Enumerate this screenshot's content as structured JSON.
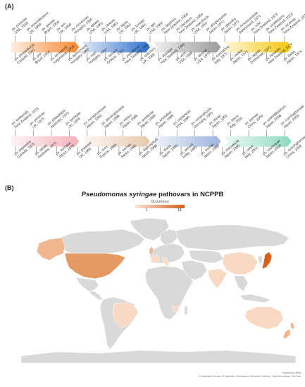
{
  "panel_a_label": "(A)",
  "panel_b_label": "(B)",
  "map_title_italic": "Pseudomonas syringae",
  "map_title_rest": " pathovars in NCPPB",
  "legend": {
    "title": "Occurrence",
    "min": "1",
    "max": "18",
    "color_low": "#fbe4d6",
    "color_high": "#d2601a"
  },
  "credit": {
    "line1": "Powered by Bing",
    "line2": "© Australian Bureau of Statistics, GeoNames, Microsoft, Navinfo, OpenStreetMap, TomTom"
  },
  "timeline": [
    {
      "segments": [
        "#f7892f",
        "#2d6fce",
        "#9b9b9b",
        "#f6c70a"
      ],
      "top": [
        [
          "pv. primulae",
          "USA, 1939"
        ],
        [
          "pv. coronafaciens",
          "UK, 1958"
        ],
        [
          "pv. garcae",
          "Brazil, 1958"
        ],
        [
          "pv. avii",
          "UK, 1959"
        ],
        [
          "pv. ciccaronei",
          "Hungary, 1960"
        ],
        [
          "pv. aptata",
          "USA, 1961"
        ],
        [
          "pv. ribicola",
          "USA, 1961"
        ],
        [
          "pv. lapsa",
          "UK, 1961"
        ],
        [
          "pv. tomato",
          "UK, 1961"
        ],
        [
          "pv. apii",
          "USA, 1964"
        ],
        [
          "pv. delphinii",
          "New Zealand, 1966"
        ],
        [
          "pv. papulans",
          "New Zealand, 1966"
        ],
        [
          "pv. maculicola",
          "USA, 1967"
        ],
        [
          "pv. atropurpurea",
          "Japan, 1971"
        ],
        [
          "pv. glycinea",
          "Japan, 1971"
        ],
        [
          "pv. broussonetiae",
          "Switzerland, 1971"
        ],
        [
          "pv. mori",
          "New Zealand, 1973"
        ],
        [
          "pv. striafaciens",
          "New Zealand, 1974"
        ],
        [
          "pv. zizaniae",
          "New Zealand, 1974"
        ]
      ],
      "bottom": [
        [
          "pv. phaseolicola",
          "Canada, 1941"
        ],
        [
          "pv. pisi",
          "Brazil, 1959"
        ],
        [
          "pv. cerasicola",
          "Yugoslavia, 1959"
        ],
        [
          "pv. lachrymans",
          "Hungary, 1960"
        ],
        [
          "pv. mori",
          "Hungary, 1961"
        ],
        [
          "pv. sesami",
          "Greece, 1961"
        ],
        [
          "pv. passiflorae",
          "New Zealand, 1961"
        ],
        [
          "pv. antirrhini",
          "UK, 1966"
        ],
        [
          "pv. dysoxyli",
          "New Zealand, 1966"
        ],
        [
          "pv. ulmi",
          "USA, 1966"
        ],
        [
          "pv. aesculi",
          "USA, 1970"
        ],
        [
          "pv. cannabina",
          "Italy, 1971"
        ],
        [
          "pv. mellea",
          "Japan, 1971"
        ],
        [
          "pv. tagetis",
          "Zimbabwe, 1972"
        ],
        [
          "pv. helianthi",
          "New Zealand, 1974"
        ],
        [
          "pv. theae",
          "Japan, 1974"
        ]
      ]
    },
    {
      "segments": [
        "#f3b2ba",
        "#e8c9ae",
        "#9bb4dc",
        "#8fd9c2"
      ],
      "top": [
        [
          "pv. berberidis",
          "New Zealand, 1975"
        ],
        [
          "pv. persicae",
          "UK, 1975"
        ],
        [
          "pv. philadelphi",
          "Australia, 1975"
        ],
        [
          "pv. syringae",
          "UK, 1976"
        ],
        [
          "pv. morsprunorum",
          "Japan, 1983"
        ],
        [
          "pv. dendropanacis",
          "Japan, 1986"
        ],
        [
          "pv. hibisci",
          "Japan, 1986"
        ],
        [
          "pv. avellanae",
          "Japan, 1989"
        ],
        [
          "pv. actinidiae",
          "Japan, 1989"
        ],
        [
          "pv. castaneae",
          "USA, 1990"
        ],
        [
          "pv. coriandricola",
          "Germany, 1991"
        ],
        [
          "pv. theae",
          "Japan, 1991"
        ],
        [
          "pv. lilacis",
          "Italy, 2001"
        ],
        [
          "pv. tremae",
          "China, 2008"
        ],
        [
          "pv. actinidifoliorum",
          "Japan, 2008"
        ],
        [
          "pv. cunninghamiae",
          "Japan, 2009"
        ]
      ],
      "bottom": [
        [
          "pv. papaveris",
          "Canada, 1975"
        ],
        [
          "pv. tabaci",
          "Australia, 1975"
        ],
        [
          "pv. syringae",
          "Japan, 1976"
        ],
        [
          "pv. phaseoli",
          "UK, 1983"
        ],
        [
          "pv. mori",
          "France, 1985"
        ],
        [
          "pv. tremae",
          "Japan, 1986"
        ],
        [
          "pv. daphniphylli",
          "Japan, 1988"
        ],
        [
          "pv. lilacis",
          "Japan, 1989"
        ],
        [
          "pv. aesculi",
          "India, 1990"
        ],
        [
          "pv. oryzae",
          "Japan, 1990"
        ],
        [
          "pv. maculicola",
          "Japan, 1990"
        ],
        [
          "pv. coryli",
          "Italy, 2001"
        ],
        [
          "pv. castaneae",
          "Japan, 2006"
        ],
        [
          "pv. cunninghamiae",
          "China, 2008"
        ]
      ]
    }
  ],
  "map_colors": {
    "ocean": "#ffffff",
    "land": "#d9d9d9",
    "border": "#ffffff",
    "usa": "#e59a63",
    "japan": "#d85f1c",
    "light": "#f8d9c4",
    "mid": "#f0b690"
  }
}
